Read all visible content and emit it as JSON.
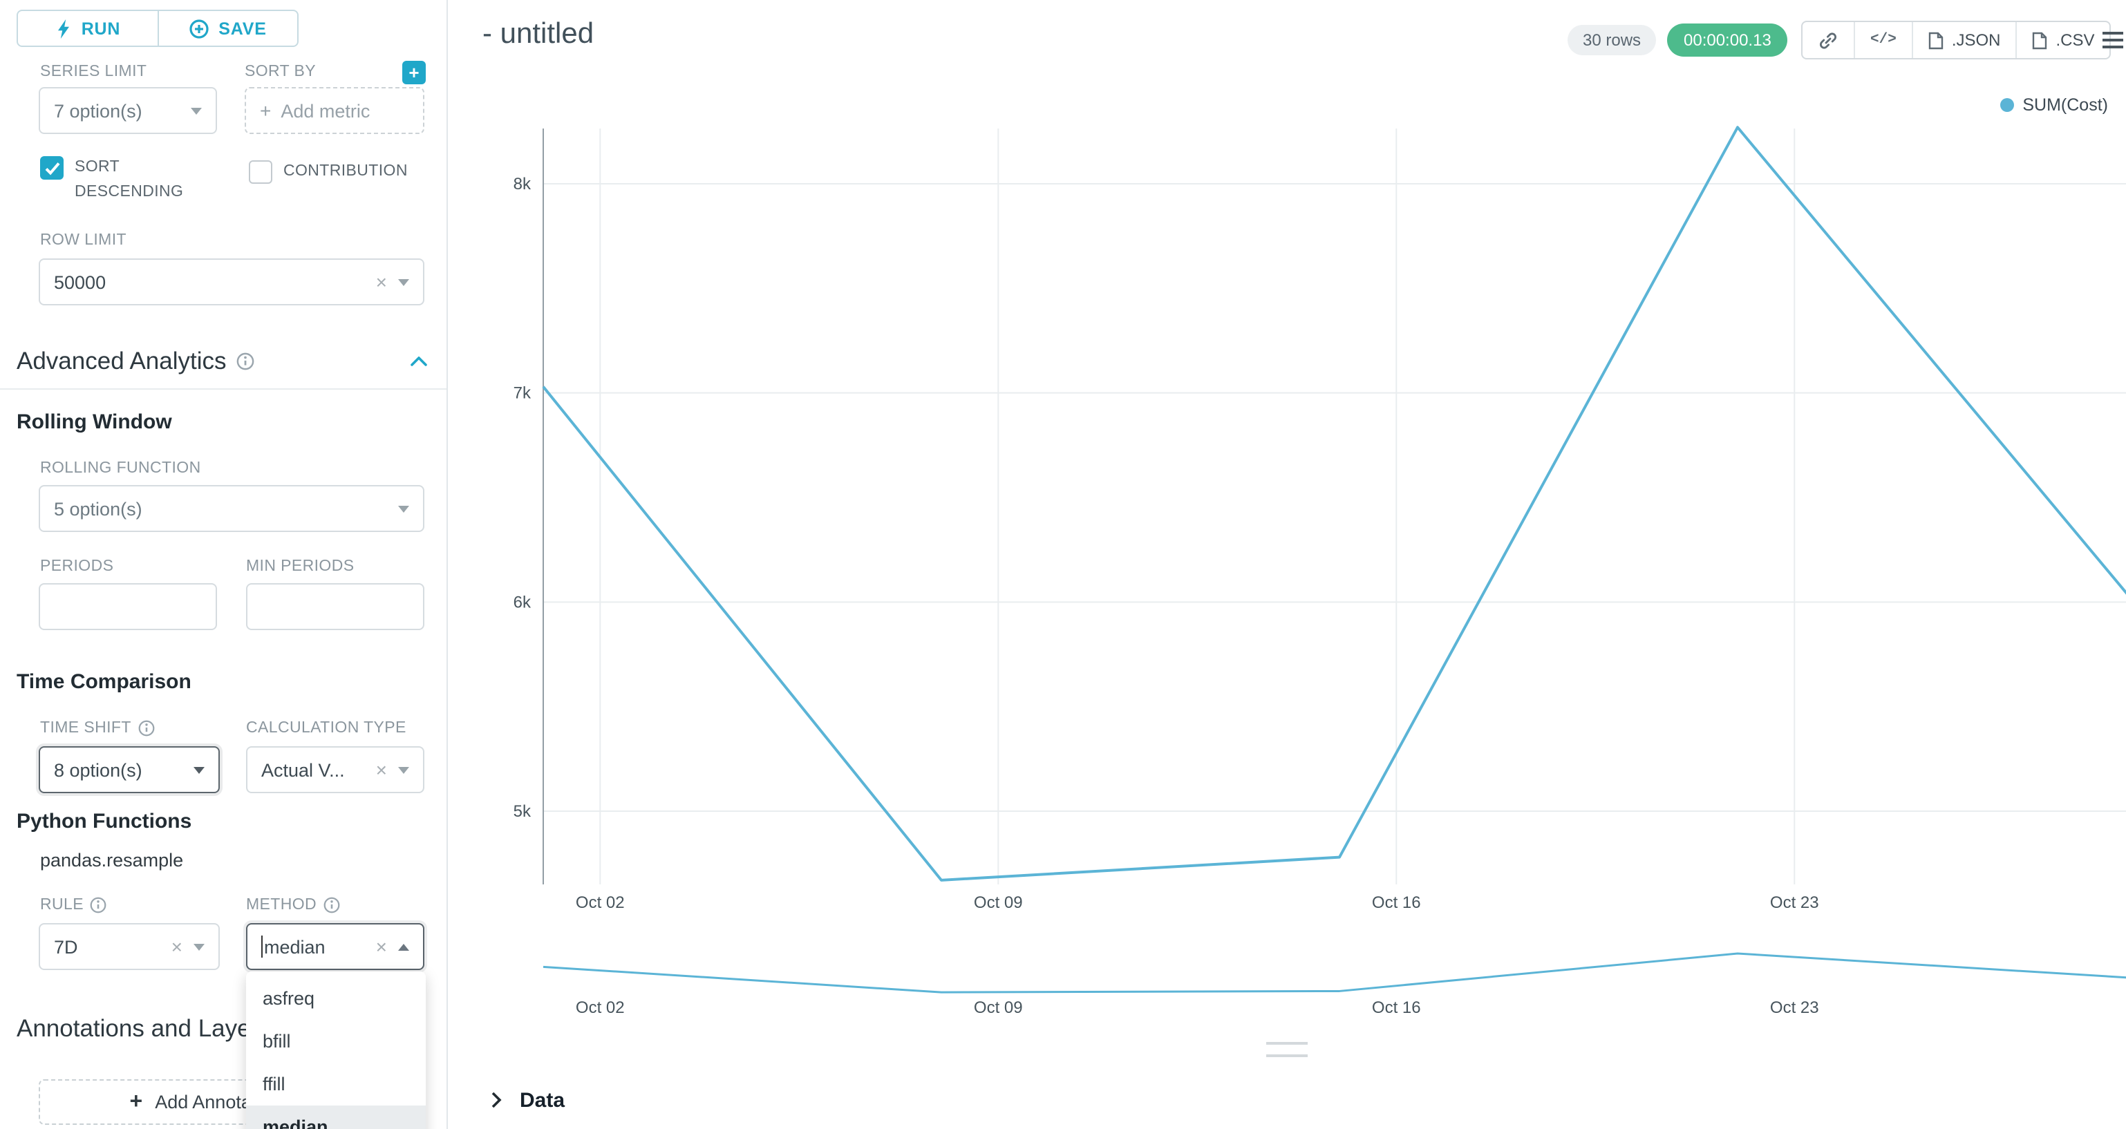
{
  "colors": {
    "accent": "#20a7c9",
    "timer_badge_bg": "#4dbb8c",
    "line": "#5bb4d6"
  },
  "sidebar": {
    "run_button": "RUN",
    "save_button": "SAVE",
    "series_limit": {
      "label": "SERIES LIMIT",
      "value": "7 option(s)"
    },
    "sort_by": {
      "label": "SORT BY",
      "placeholder": "Add metric"
    },
    "sort_descending": {
      "label": "SORT DESCENDING",
      "checked": true
    },
    "contribution": {
      "label": "CONTRIBUTION",
      "checked": false
    },
    "row_limit": {
      "label": "ROW LIMIT",
      "value": "50000"
    },
    "advanced_analytics_title": "Advanced Analytics",
    "rolling_window": {
      "title": "Rolling Window",
      "rolling_function": {
        "label": "ROLLING FUNCTION",
        "value": "5 option(s)"
      },
      "periods_label": "PERIODS",
      "min_periods_label": "MIN PERIODS"
    },
    "time_comparison": {
      "title": "Time Comparison",
      "time_shift": {
        "label": "TIME SHIFT",
        "value": "8 option(s)"
      },
      "calculation_type": {
        "label": "CALCULATION TYPE",
        "value": "Actual V..."
      }
    },
    "python_functions": {
      "title": "Python Functions",
      "subtitle": "pandas.resample",
      "rule": {
        "label": "RULE",
        "value": "7D"
      },
      "method": {
        "label": "METHOD",
        "value": "median",
        "options": [
          "asfreq",
          "bfill",
          "ffill",
          "median"
        ],
        "selected": "median"
      }
    },
    "annotations": {
      "title": "Annotations and Layers",
      "add_button": "Add Annotation Layer"
    }
  },
  "header": {
    "title": "- untitled",
    "rows_badge": "30 rows",
    "timer_badge": "00:00:00.13",
    "json_button": ".JSON",
    "csv_button": ".CSV"
  },
  "chart_data": {
    "type": "line",
    "title": "- untitled",
    "color": "#5bb4d6",
    "legend_position": "top-right",
    "series": [
      {
        "name": "SUM(Cost)",
        "x_days": [
          0,
          7,
          14,
          21,
          28
        ],
        "values": [
          7030,
          4670,
          4780,
          8270,
          5990
        ]
      }
    ],
    "x_tick_labels": [
      "Oct 02",
      "Oct 09",
      "Oct 16",
      "Oct 23"
    ],
    "x_tick_days": [
      1,
      8,
      15,
      22
    ],
    "y_ticks": [
      {
        "label": "8k",
        "value": 8000
      },
      {
        "label": "7k",
        "value": 7000
      },
      {
        "label": "6k",
        "value": 6000
      },
      {
        "label": "5k",
        "value": 5000
      }
    ],
    "ylim": [
      4400,
      8400
    ],
    "grid": true,
    "has_mini_preview": true
  },
  "data_panel": {
    "title": "Data"
  }
}
